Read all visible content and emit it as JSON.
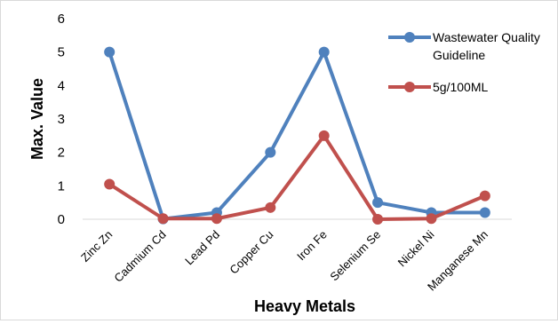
{
  "chart_data": {
    "type": "line",
    "xlabel": "Heavy Metals",
    "ylabel": "Max. Value",
    "ylim": [
      0,
      6
    ],
    "yticks": [
      0,
      1,
      2,
      3,
      4,
      5,
      6
    ],
    "grid": false,
    "legend_position": "top-right",
    "categories": [
      "Zinc Zn",
      "Cadmium Cd",
      "Lead Pd",
      "Copper Cu",
      "Iron Fe",
      "Selenium Se",
      "Nickel Ni",
      "Manganese Mn"
    ],
    "series": [
      {
        "name": "Wastewater Quality Guideline",
        "legend_lines": [
          "Wastewater Quality",
          "Guideline"
        ],
        "color": "#4f81bd",
        "values": [
          5,
          0.01,
          0.2,
          2,
          5,
          0.5,
          0.2,
          0.2
        ]
      },
      {
        "name": "5g/100ML",
        "legend_lines": [
          "5g/100ML"
        ],
        "color": "#c0504d",
        "values": [
          1.05,
          0.02,
          0.02,
          0.35,
          2.5,
          0.0,
          0.02,
          0.7
        ]
      }
    ]
  }
}
